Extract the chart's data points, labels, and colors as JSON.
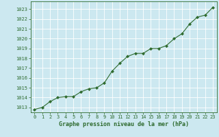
{
  "x": [
    0,
    1,
    2,
    3,
    4,
    5,
    6,
    7,
    8,
    9,
    10,
    11,
    12,
    13,
    14,
    15,
    16,
    17,
    18,
    19,
    20,
    21,
    22,
    23
  ],
  "y": [
    1012.8,
    1013.0,
    1013.6,
    1014.0,
    1014.1,
    1014.1,
    1014.6,
    1014.9,
    1015.0,
    1015.5,
    1016.7,
    1017.5,
    1018.2,
    1018.5,
    1018.5,
    1019.0,
    1019.0,
    1019.3,
    1020.0,
    1020.5,
    1021.5,
    1022.2,
    1022.4,
    1023.2
  ],
  "line_color": "#2d6a2d",
  "marker": "D",
  "marker_size": 2.2,
  "bg_color": "#cce8f0",
  "grid_color": "#ffffff",
  "xlabel": "Graphe pression niveau de la mer (hPa)",
  "xlabel_color": "#2d6a2d",
  "tick_color": "#2d6a2d",
  "label_color": "#2d6a2d",
  "ylim": [
    1012.5,
    1023.8
  ],
  "yticks": [
    1013,
    1014,
    1015,
    1016,
    1017,
    1018,
    1019,
    1020,
    1021,
    1022,
    1023
  ],
  "xlim": [
    -0.5,
    23.5
  ],
  "xticks": [
    0,
    1,
    2,
    3,
    4,
    5,
    6,
    7,
    8,
    9,
    10,
    11,
    12,
    13,
    14,
    15,
    16,
    17,
    18,
    19,
    20,
    21,
    22,
    23
  ],
  "xtick_labels": [
    "0",
    "1",
    "2",
    "3",
    "4",
    "5",
    "6",
    "7",
    "8",
    "9",
    "10",
    "11",
    "12",
    "13",
    "14",
    "15",
    "16",
    "17",
    "18",
    "19",
    "20",
    "21",
    "22",
    "23"
  ]
}
